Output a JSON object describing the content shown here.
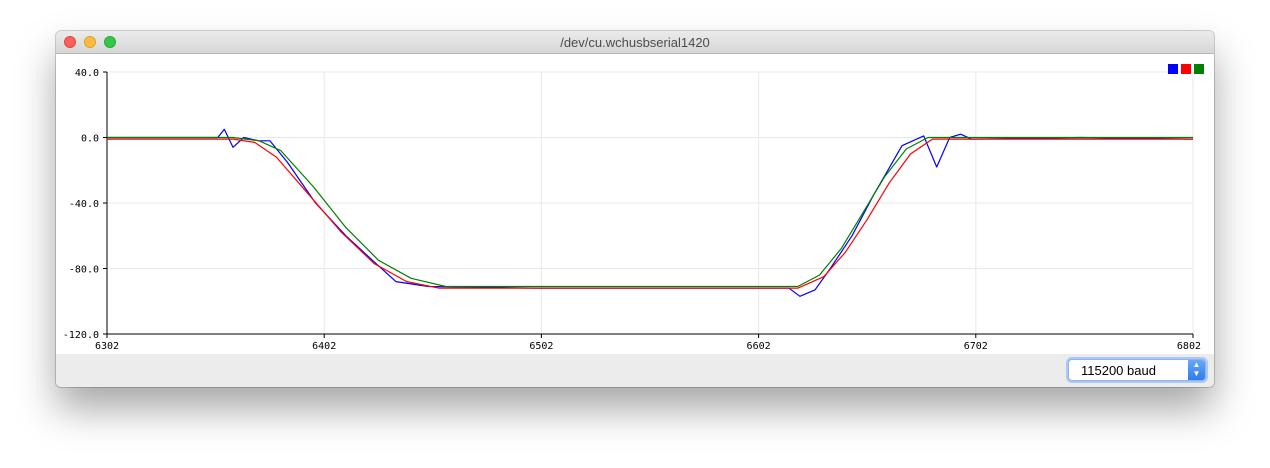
{
  "window": {
    "title": "/dev/cu.wchusbserial1420"
  },
  "baud_select": {
    "value": "115200 baud"
  },
  "legend_colors": [
    "#0000ff",
    "#ff0000",
    "#008000"
  ],
  "chart_data": {
    "type": "line",
    "xlim": [
      6302,
      6802
    ],
    "ylim": [
      -120,
      40
    ],
    "x_ticks": [
      "6302",
      "6402",
      "6502",
      "6602",
      "6702",
      "6802"
    ],
    "y_ticks": [
      "40.0",
      "0.0",
      "-40.0",
      "-80.0",
      "-120.0"
    ],
    "grid": true,
    "legend": "top-right",
    "series": [
      {
        "color": "#0000ff",
        "x": [
          6302,
          6353,
          6356,
          6360,
          6365,
          6372,
          6377,
          6385,
          6398,
          6412,
          6425,
          6435,
          6450,
          6500,
          6580,
          6616,
          6621,
          6628,
          6635,
          6645,
          6655,
          6668,
          6678,
          6684,
          6690,
          6695,
          6700,
          6750,
          6802
        ],
        "y": [
          0,
          0,
          5,
          -6,
          0,
          -2,
          -2,
          -15,
          -40,
          -60,
          -76,
          -88,
          -91,
          -92,
          -92,
          -92,
          -97,
          -93,
          -80,
          -60,
          -35,
          -5,
          1,
          -18,
          0,
          2,
          -1,
          0,
          -1
        ]
      },
      {
        "color": "#ff0000",
        "x": [
          6302,
          6360,
          6370,
          6380,
          6395,
          6410,
          6425,
          6440,
          6455,
          6500,
          6580,
          6620,
          6632,
          6642,
          6652,
          6662,
          6672,
          6682,
          6700,
          6802
        ],
        "y": [
          -1,
          -1,
          -3,
          -12,
          -35,
          -58,
          -77,
          -88,
          -92,
          -92,
          -92,
          -92,
          -85,
          -70,
          -50,
          -28,
          -10,
          -1,
          -1,
          -1
        ]
      },
      {
        "color": "#008000",
        "x": [
          6302,
          6360,
          6372,
          6382,
          6397,
          6412,
          6427,
          6442,
          6458,
          6500,
          6580,
          6620,
          6630,
          6640,
          6650,
          6660,
          6670,
          6680,
          6700,
          6802
        ],
        "y": [
          0,
          0,
          -2,
          -8,
          -30,
          -55,
          -75,
          -86,
          -91,
          -91,
          -91,
          -91,
          -84,
          -68,
          -46,
          -24,
          -7,
          0,
          0,
          0
        ]
      }
    ]
  }
}
